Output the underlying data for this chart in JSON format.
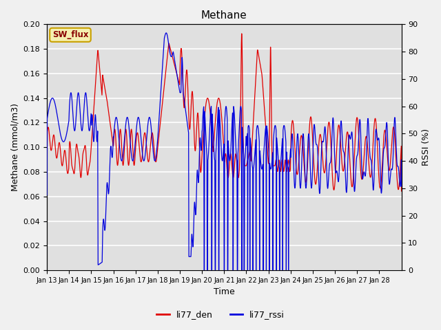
{
  "title": "Methane",
  "ylabel_left": "Methane (mmol/m3)",
  "ylabel_right": "RSSI (%)",
  "xlabel": "Time",
  "ylim_left": [
    0.0,
    0.2
  ],
  "ylim_right": [
    0,
    90
  ],
  "yticks_left": [
    0.0,
    0.02,
    0.04,
    0.06,
    0.08,
    0.1,
    0.12,
    0.14,
    0.16,
    0.18,
    0.2
  ],
  "yticks_right": [
    0,
    10,
    20,
    30,
    40,
    50,
    60,
    70,
    80,
    90
  ],
  "x_labels": [
    "Jan 13",
    "Jan 14",
    "Jan 15",
    "Jan 16",
    "Jan 17",
    "Jan 18",
    "Jan 19",
    "Jan 20",
    "Jan 21",
    "Jan 22",
    "Jan 23",
    "Jan 24",
    "Jan 25",
    "Jan 26",
    "Jan 27",
    "Jan 28"
  ],
  "sw_flux_label": "SW_flux",
  "legend_labels": [
    "li77_den",
    "li77_rssi"
  ],
  "line_colors": [
    "#e00000",
    "#0000dd"
  ],
  "bg_color": "#e0e0e0",
  "fig_bg_color": "#f0f0f0",
  "grid_color": "#ffffff"
}
